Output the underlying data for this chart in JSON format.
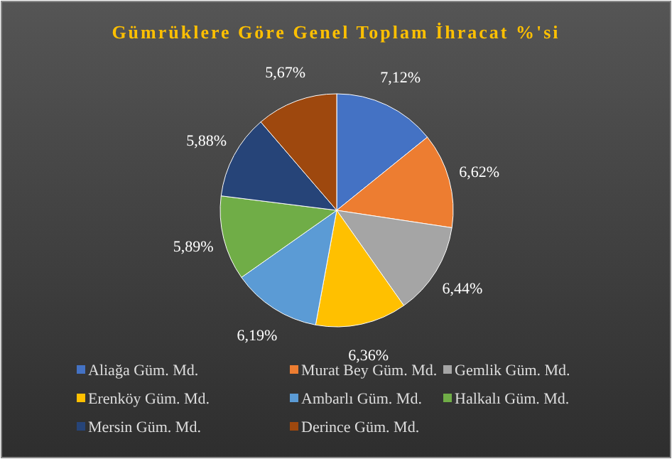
{
  "chart_data": {
    "type": "pie",
    "title": "Gümrüklere Göre Genel Toplam İhracat %'si",
    "categories": [
      "Aliağa Güm. Md.",
      "Murat Bey Güm. Md.",
      "Gemlik Güm. Md.",
      "Erenköy Güm. Md.",
      "Ambarlı Güm. Md.",
      "Halkalı Güm. Md.",
      "Mersin Güm. Md.",
      "Derince Güm. Md."
    ],
    "values": [
      7.12,
      6.62,
      6.44,
      6.36,
      6.19,
      5.89,
      5.88,
      5.67
    ],
    "value_labels": [
      "7,12%",
      "6,62%",
      "6,44%",
      "6,36%",
      "6,19%",
      "5,89%",
      "5,88%",
      "5,67%"
    ],
    "colors": [
      "#4472c4",
      "#ed7d31",
      "#a5a5a5",
      "#ffc000",
      "#5b9bd5",
      "#70ad47",
      "#264478",
      "#9e480e"
    ],
    "legend": "bottom"
  }
}
